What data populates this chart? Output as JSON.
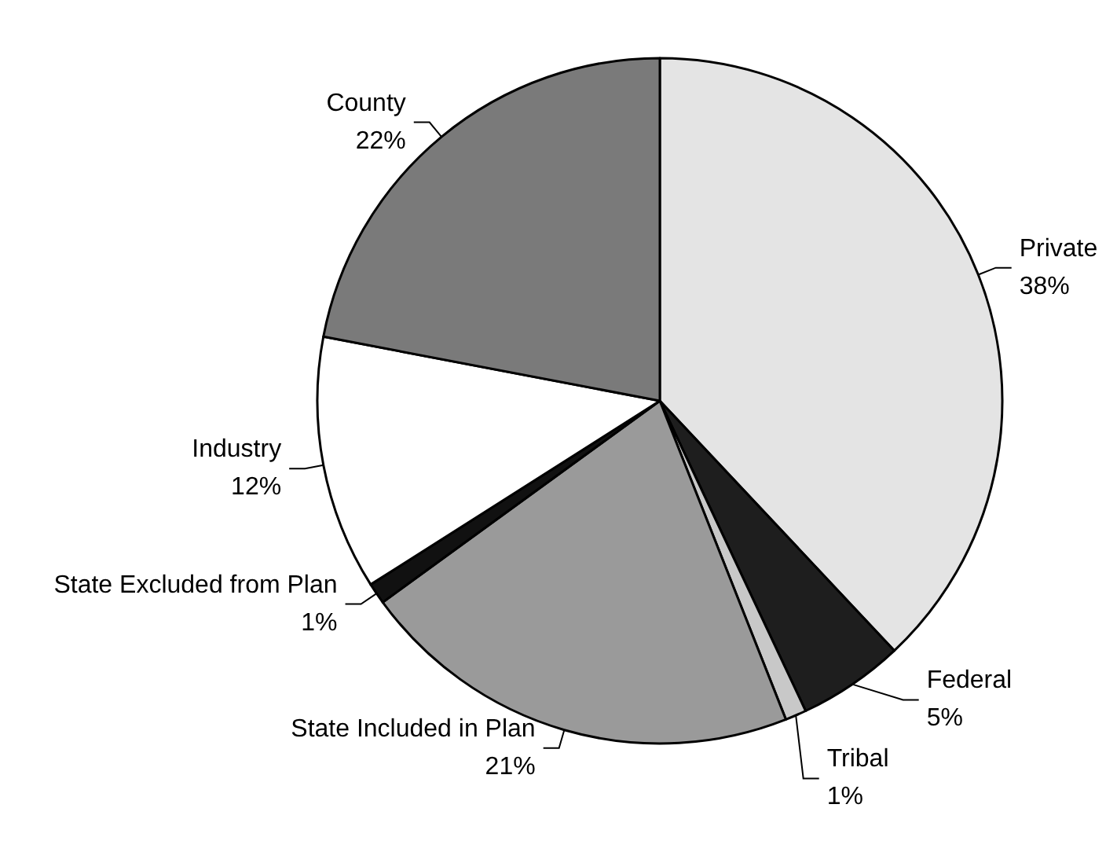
{
  "chart_data": {
    "type": "pie",
    "categories": [
      "Private",
      "Federal",
      "Tribal",
      "State Included in Plan",
      "State Excluded from Plan",
      "Industry",
      "County"
    ],
    "values": [
      38,
      5,
      1,
      21,
      1,
      12,
      22
    ],
    "value_labels": [
      "38%",
      "5%",
      "1%",
      "21%",
      "1%",
      "12%",
      "22%"
    ],
    "colors": [
      "#e4e4e4",
      "#1e1e1e",
      "#c8c8c8",
      "#9a9a9a",
      "#111111",
      "#ffffff",
      "#7a7a7a"
    ],
    "legend": false
  }
}
